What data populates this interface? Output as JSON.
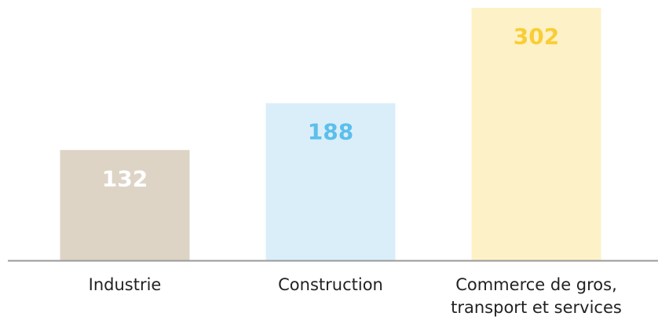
{
  "chart_data": {
    "type": "bar",
    "categories": [
      "Industrie",
      "Construction",
      "Commerce de gros, transport et services"
    ],
    "category_lines": [
      [
        "Industrie"
      ],
      [
        "Construction"
      ],
      [
        "Commerce de gros,",
        "transport et services"
      ]
    ],
    "values": [
      132,
      188,
      302
    ],
    "value_labels": [
      "132",
      "188",
      "302"
    ],
    "bar_colors": [
      "#ddd4c6",
      "#daeef9",
      "#fdf1c7"
    ],
    "label_colors": [
      "#ffffff",
      "#5bbfec",
      "#f9cd35"
    ],
    "axis_color": "#9a9a9a",
    "title": "",
    "xlabel": "",
    "ylabel": "",
    "ylim": [
      0,
      302
    ],
    "grid": false,
    "legend": "none"
  }
}
